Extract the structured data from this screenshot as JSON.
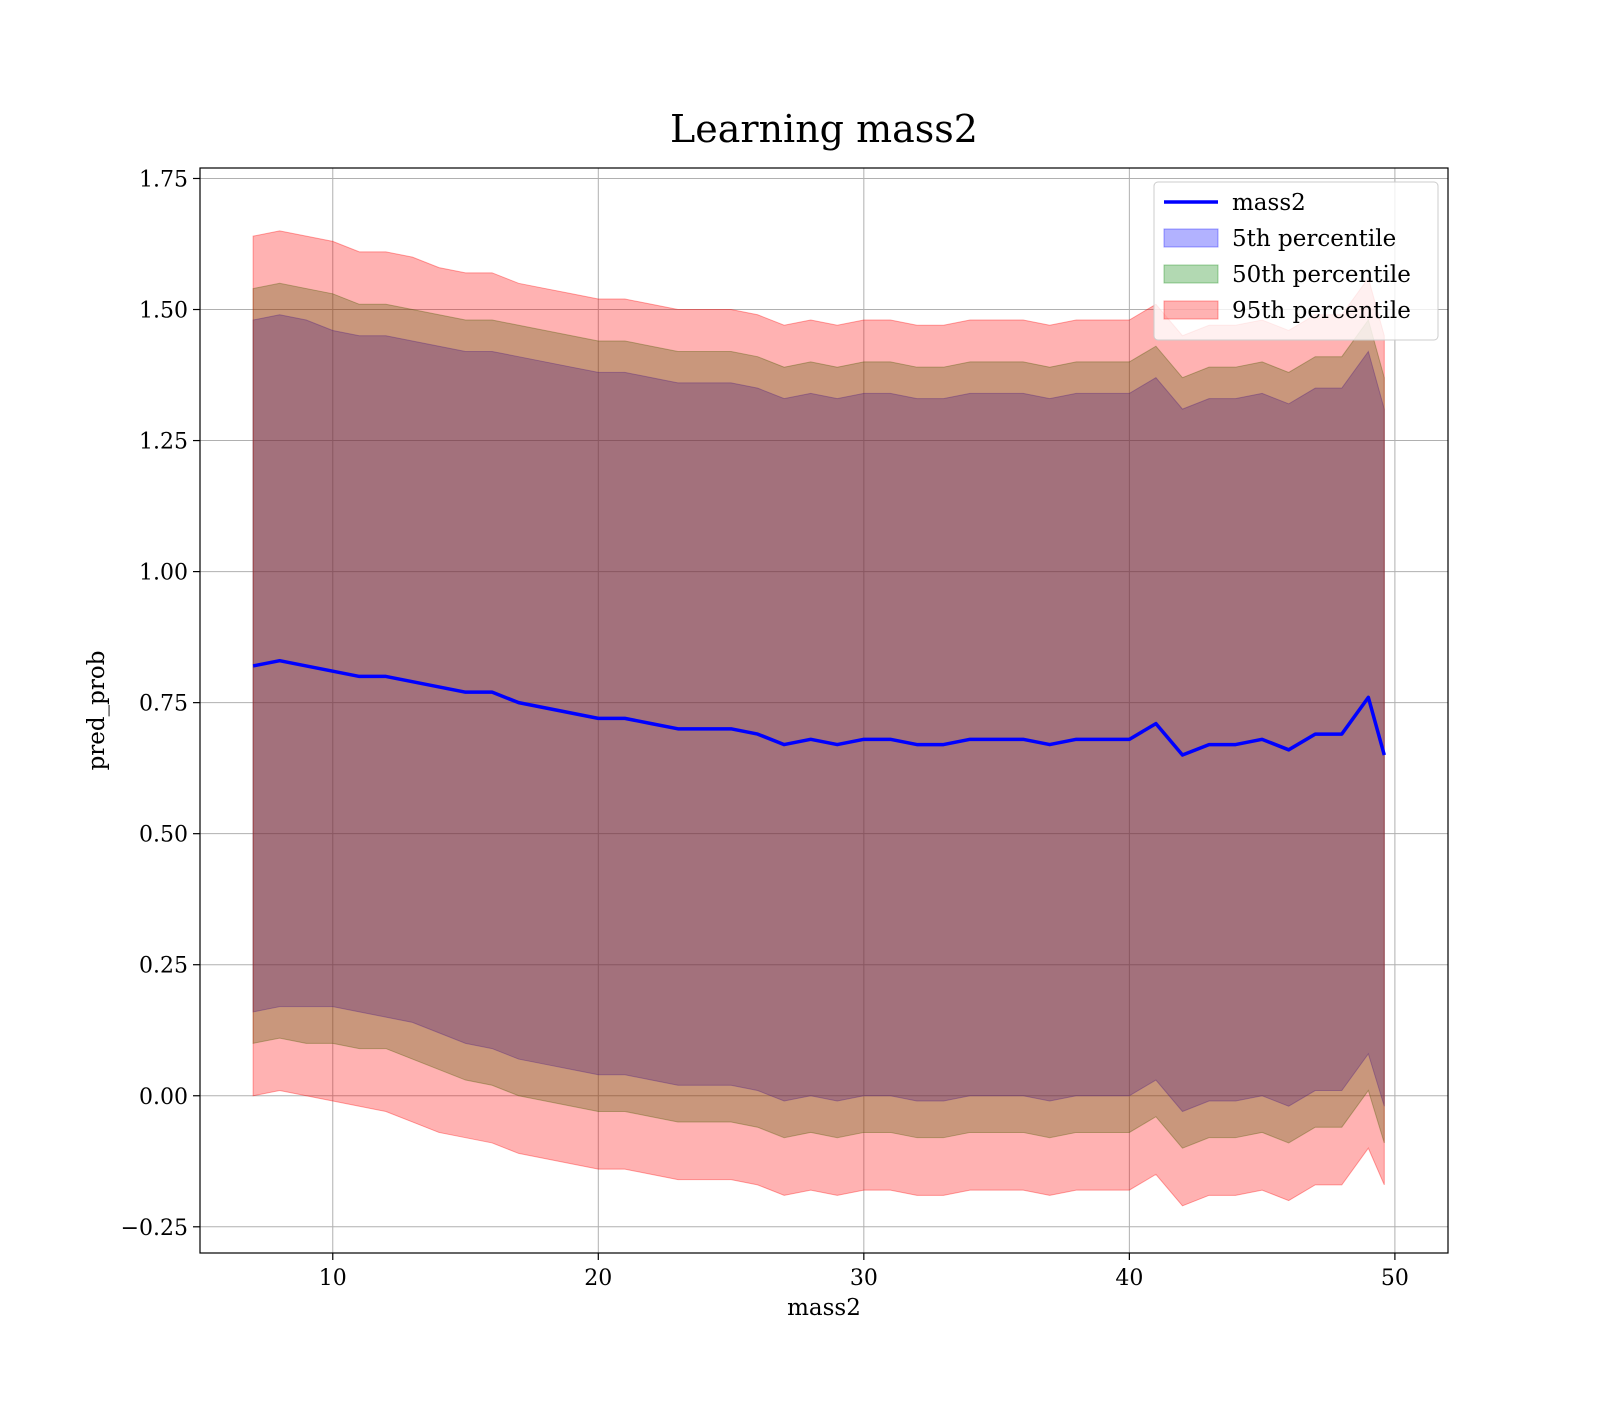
{
  "chart_data": {
    "type": "line",
    "title": "Learning mass2",
    "xlabel": "mass2",
    "ylabel": "pred_prob",
    "xlim": [
      5,
      52
    ],
    "ylim": [
      -0.3,
      1.77
    ],
    "xticks": [
      10,
      20,
      30,
      40,
      50
    ],
    "xtick_labels": [
      "10",
      "20",
      "30",
      "40",
      "50"
    ],
    "yticks": [
      -0.25,
      0,
      0.25,
      0.5,
      0.75,
      1.0,
      1.25,
      1.5,
      1.75
    ],
    "ytick_labels": [
      "−0.25",
      "0.00",
      "0.25",
      "0.50",
      "0.75",
      "1.00",
      "1.25",
      "1.50",
      "1.75"
    ],
    "grid": true,
    "legend_position": "top-right",
    "x": [
      7,
      8,
      9,
      10,
      11,
      12,
      13,
      14,
      15,
      16,
      17,
      18,
      19,
      20,
      21,
      22,
      23,
      24,
      25,
      26,
      27,
      28,
      29,
      30,
      31,
      32,
      33,
      34,
      35,
      36,
      37,
      38,
      39,
      40,
      41,
      42,
      43,
      44,
      45,
      46,
      47,
      48,
      49,
      49.6
    ],
    "series": [
      {
        "name": "mass2",
        "kind": "line",
        "color": "#0000ff",
        "values": [
          0.82,
          0.83,
          0.82,
          0.81,
          0.8,
          0.8,
          0.79,
          0.78,
          0.77,
          0.77,
          0.75,
          0.74,
          0.73,
          0.72,
          0.72,
          0.71,
          0.7,
          0.7,
          0.7,
          0.69,
          0.67,
          0.68,
          0.67,
          0.68,
          0.68,
          0.67,
          0.67,
          0.68,
          0.68,
          0.68,
          0.67,
          0.68,
          0.68,
          0.68,
          0.71,
          0.65,
          0.67,
          0.67,
          0.68,
          0.66,
          0.69,
          0.69,
          0.76,
          0.65
        ]
      },
      {
        "name": "5th percentile",
        "kind": "band",
        "color": "#0000ff",
        "opacity": 0.3,
        "lower": [
          0.16,
          0.17,
          0.17,
          0.17,
          0.16,
          0.15,
          0.14,
          0.12,
          0.1,
          0.09,
          0.07,
          0.06,
          0.05,
          0.04,
          0.04,
          0.03,
          0.02,
          0.02,
          0.02,
          0.01,
          -0.01,
          0.0,
          -0.01,
          0.0,
          0.0,
          -0.01,
          -0.01,
          0.0,
          0.0,
          0.0,
          -0.01,
          0.0,
          0.0,
          0.0,
          0.03,
          -0.03,
          -0.01,
          -0.01,
          0.0,
          -0.02,
          0.01,
          0.01,
          0.08,
          -0.02
        ],
        "upper": [
          1.48,
          1.49,
          1.48,
          1.46,
          1.45,
          1.45,
          1.44,
          1.43,
          1.42,
          1.42,
          1.41,
          1.4,
          1.39,
          1.38,
          1.38,
          1.37,
          1.36,
          1.36,
          1.36,
          1.35,
          1.33,
          1.34,
          1.33,
          1.34,
          1.34,
          1.33,
          1.33,
          1.34,
          1.34,
          1.34,
          1.33,
          1.34,
          1.34,
          1.34,
          1.37,
          1.31,
          1.33,
          1.33,
          1.34,
          1.32,
          1.35,
          1.35,
          1.42,
          1.31
        ]
      },
      {
        "name": "50th percentile",
        "kind": "band",
        "color": "#008000",
        "opacity": 0.3,
        "lower": [
          0.1,
          0.11,
          0.1,
          0.1,
          0.09,
          0.09,
          0.07,
          0.05,
          0.03,
          0.02,
          0.0,
          -0.01,
          -0.02,
          -0.03,
          -0.03,
          -0.04,
          -0.05,
          -0.05,
          -0.05,
          -0.06,
          -0.08,
          -0.07,
          -0.08,
          -0.07,
          -0.07,
          -0.08,
          -0.08,
          -0.07,
          -0.07,
          -0.07,
          -0.08,
          -0.07,
          -0.07,
          -0.07,
          -0.04,
          -0.1,
          -0.08,
          -0.08,
          -0.07,
          -0.09,
          -0.06,
          -0.06,
          0.01,
          -0.09
        ],
        "upper": [
          1.54,
          1.55,
          1.54,
          1.53,
          1.51,
          1.51,
          1.5,
          1.49,
          1.48,
          1.48,
          1.47,
          1.46,
          1.45,
          1.44,
          1.44,
          1.43,
          1.42,
          1.42,
          1.42,
          1.41,
          1.39,
          1.4,
          1.39,
          1.4,
          1.4,
          1.39,
          1.39,
          1.4,
          1.4,
          1.4,
          1.39,
          1.4,
          1.4,
          1.4,
          1.43,
          1.37,
          1.39,
          1.39,
          1.4,
          1.38,
          1.41,
          1.41,
          1.48,
          1.37
        ]
      },
      {
        "name": "95th percentile",
        "kind": "band",
        "color": "#ff0000",
        "opacity": 0.3,
        "lower": [
          0.0,
          0.01,
          0.0,
          -0.01,
          -0.02,
          -0.03,
          -0.05,
          -0.07,
          -0.08,
          -0.09,
          -0.11,
          -0.12,
          -0.13,
          -0.14,
          -0.14,
          -0.15,
          -0.16,
          -0.16,
          -0.16,
          -0.17,
          -0.19,
          -0.18,
          -0.19,
          -0.18,
          -0.18,
          -0.19,
          -0.19,
          -0.18,
          -0.18,
          -0.18,
          -0.19,
          -0.18,
          -0.18,
          -0.18,
          -0.15,
          -0.21,
          -0.19,
          -0.19,
          -0.18,
          -0.2,
          -0.17,
          -0.17,
          -0.1,
          -0.17
        ],
        "upper": [
          1.64,
          1.65,
          1.64,
          1.63,
          1.61,
          1.61,
          1.6,
          1.58,
          1.57,
          1.57,
          1.55,
          1.54,
          1.53,
          1.52,
          1.52,
          1.51,
          1.5,
          1.5,
          1.5,
          1.49,
          1.47,
          1.48,
          1.47,
          1.48,
          1.48,
          1.47,
          1.47,
          1.48,
          1.48,
          1.48,
          1.47,
          1.48,
          1.48,
          1.48,
          1.51,
          1.45,
          1.47,
          1.47,
          1.48,
          1.46,
          1.49,
          1.49,
          1.56,
          1.45
        ]
      }
    ]
  }
}
